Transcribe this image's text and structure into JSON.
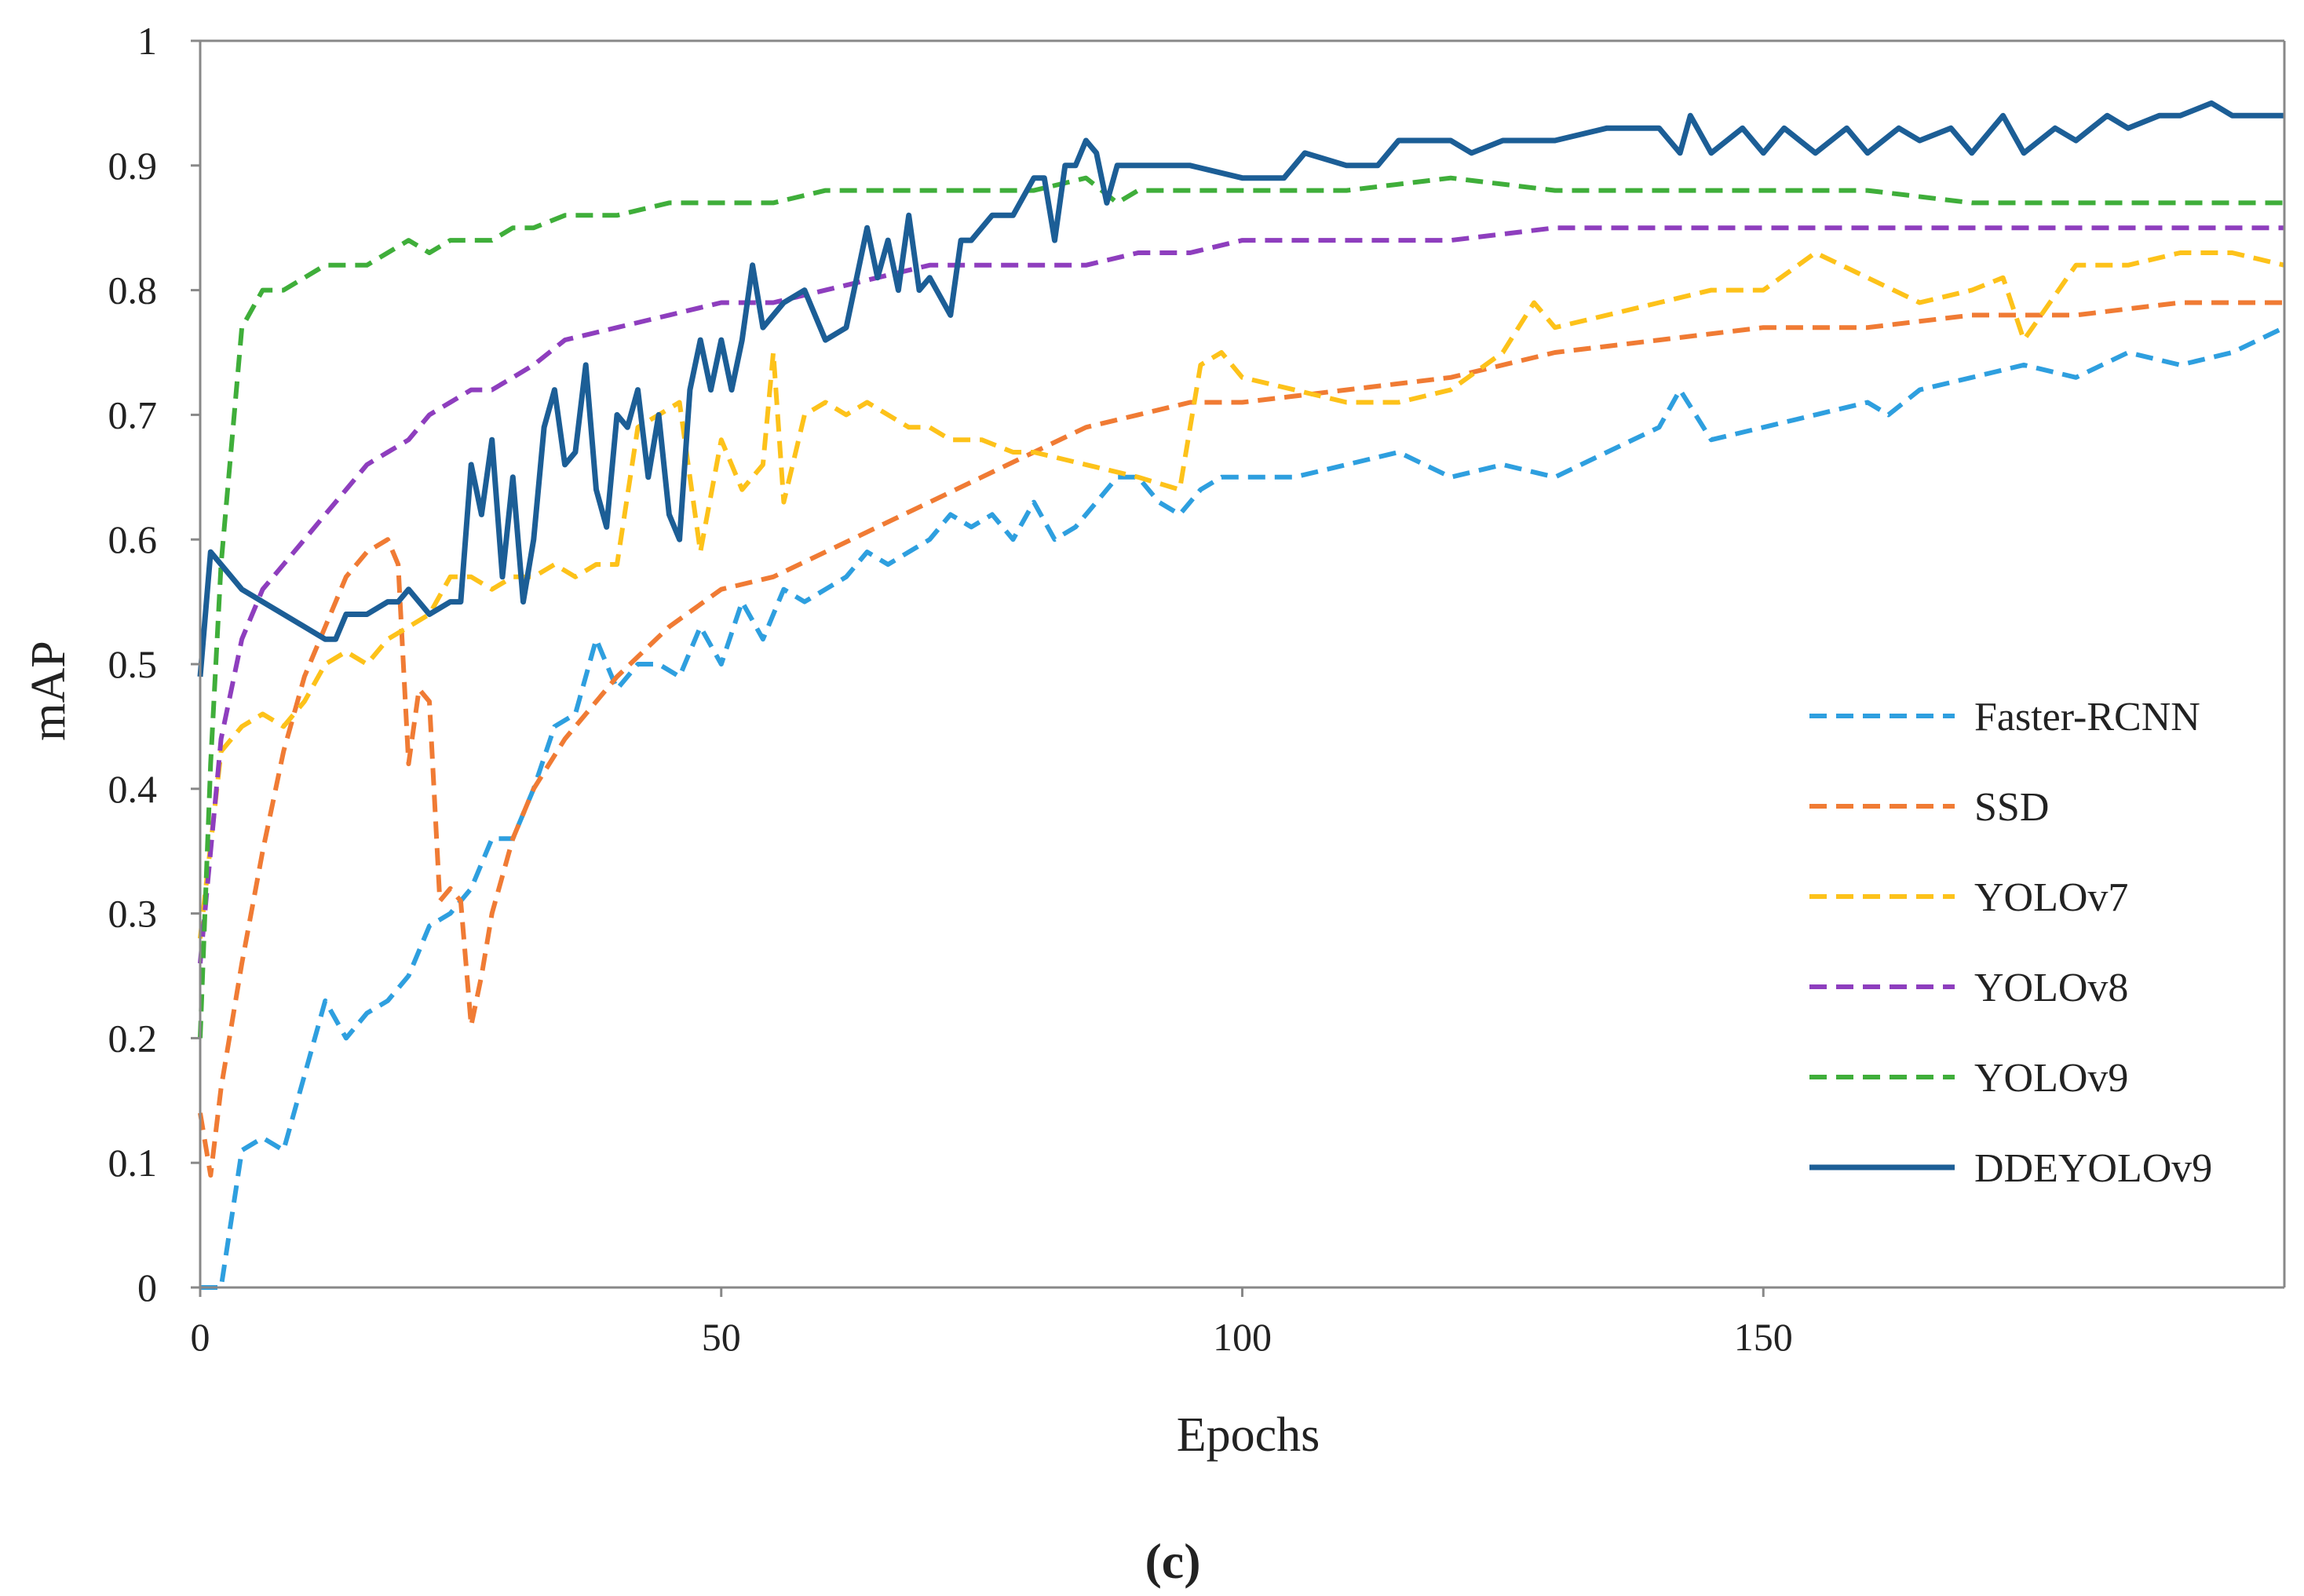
{
  "chart_data": {
    "type": "line",
    "title": "",
    "xlabel": "Epochs",
    "ylabel": "mAP",
    "caption": "(c)",
    "xlim": [
      0,
      200
    ],
    "ylim": [
      0,
      1
    ],
    "xticks": [
      {
        "value": 0,
        "label": "0"
      },
      {
        "value": 50,
        "label": "50"
      },
      {
        "value": 100,
        "label": "100"
      },
      {
        "value": 150,
        "label": "150"
      }
    ],
    "yticks": [
      {
        "value": 0,
        "label": "0"
      },
      {
        "value": 0.1,
        "label": "0.1"
      },
      {
        "value": 0.2,
        "label": "0.2"
      },
      {
        "value": 0.3,
        "label": "0.3"
      },
      {
        "value": 0.4,
        "label": "0.4"
      },
      {
        "value": 0.5,
        "label": "0.5"
      },
      {
        "value": 0.6,
        "label": "0.6"
      },
      {
        "value": 0.7,
        "label": "0.7"
      },
      {
        "value": 0.8,
        "label": "0.8"
      },
      {
        "value": 0.9,
        "label": "0.9"
      },
      {
        "value": 1,
        "label": "1"
      }
    ],
    "grid": false,
    "legend_position": "right",
    "series": [
      {
        "name": "Faster-RCNN",
        "color": "#2E9FDF",
        "dashed": true,
        "x": [
          0,
          2,
          4,
          6,
          8,
          10,
          12,
          14,
          16,
          18,
          20,
          22,
          24,
          26,
          28,
          30,
          32,
          34,
          36,
          38,
          40,
          42,
          44,
          46,
          48,
          50,
          52,
          54,
          56,
          58,
          60,
          62,
          64,
          66,
          68,
          70,
          72,
          74,
          76,
          78,
          80,
          82,
          84,
          86,
          88,
          90,
          92,
          94,
          96,
          98,
          100,
          105,
          110,
          115,
          120,
          125,
          130,
          135,
          140,
          142,
          145,
          150,
          155,
          160,
          162,
          165,
          170,
          175,
          180,
          185,
          190,
          195,
          200
        ],
        "y": [
          0,
          0,
          0.11,
          0.12,
          0.11,
          0.17,
          0.23,
          0.2,
          0.22,
          0.23,
          0.25,
          0.29,
          0.3,
          0.32,
          0.36,
          0.36,
          0.4,
          0.45,
          0.46,
          0.52,
          0.48,
          0.5,
          0.5,
          0.49,
          0.53,
          0.5,
          0.55,
          0.52,
          0.56,
          0.55,
          0.56,
          0.57,
          0.59,
          0.58,
          0.59,
          0.6,
          0.62,
          0.61,
          0.62,
          0.6,
          0.63,
          0.6,
          0.61,
          0.63,
          0.65,
          0.65,
          0.63,
          0.62,
          0.64,
          0.65,
          0.65,
          0.65,
          0.66,
          0.67,
          0.65,
          0.66,
          0.65,
          0.67,
          0.69,
          0.72,
          0.68,
          0.69,
          0.7,
          0.71,
          0.7,
          0.72,
          0.73,
          0.74,
          0.73,
          0.75,
          0.74,
          0.75,
          0.77
        ]
      },
      {
        "name": "SSD",
        "color": "#F07B34",
        "dashed": true,
        "x": [
          0,
          1,
          2,
          4,
          6,
          8,
          10,
          12,
          14,
          16,
          18,
          19,
          20,
          21,
          22,
          23,
          24,
          25,
          26,
          27,
          28,
          30,
          32,
          35,
          40,
          45,
          50,
          55,
          60,
          65,
          70,
          75,
          80,
          85,
          90,
          95,
          100,
          110,
          120,
          130,
          140,
          150,
          160,
          170,
          180,
          190,
          200
        ],
        "y": [
          0.14,
          0.09,
          0.16,
          0.26,
          0.35,
          0.43,
          0.49,
          0.53,
          0.57,
          0.59,
          0.6,
          0.58,
          0.42,
          0.48,
          0.47,
          0.31,
          0.32,
          0.31,
          0.21,
          0.25,
          0.3,
          0.36,
          0.4,
          0.44,
          0.49,
          0.53,
          0.56,
          0.57,
          0.59,
          0.61,
          0.63,
          0.65,
          0.67,
          0.69,
          0.7,
          0.71,
          0.71,
          0.72,
          0.73,
          0.75,
          0.76,
          0.77,
          0.77,
          0.78,
          0.78,
          0.79,
          0.79
        ]
      },
      {
        "name": "YOLOv7",
        "color": "#FDC21A",
        "dashed": true,
        "x": [
          0,
          2,
          4,
          6,
          8,
          10,
          12,
          14,
          16,
          18,
          20,
          22,
          24,
          26,
          28,
          30,
          32,
          34,
          36,
          38,
          40,
          42,
          44,
          46,
          48,
          50,
          52,
          54,
          55,
          56,
          58,
          60,
          62,
          64,
          66,
          68,
          70,
          72,
          75,
          78,
          80,
          85,
          90,
          94,
          95,
          96,
          98,
          100,
          105,
          110,
          115,
          120,
          125,
          128,
          130,
          135,
          140,
          145,
          150,
          155,
          160,
          165,
          170,
          173,
          175,
          180,
          185,
          190,
          195,
          200
        ],
        "y": [
          0.28,
          0.43,
          0.45,
          0.46,
          0.45,
          0.47,
          0.5,
          0.51,
          0.5,
          0.52,
          0.53,
          0.54,
          0.57,
          0.57,
          0.56,
          0.57,
          0.57,
          0.58,
          0.57,
          0.58,
          0.58,
          0.69,
          0.7,
          0.71,
          0.59,
          0.68,
          0.64,
          0.66,
          0.75,
          0.63,
          0.7,
          0.71,
          0.7,
          0.71,
          0.7,
          0.69,
          0.69,
          0.68,
          0.68,
          0.67,
          0.67,
          0.66,
          0.65,
          0.64,
          0.69,
          0.74,
          0.75,
          0.73,
          0.72,
          0.71,
          0.71,
          0.72,
          0.75,
          0.79,
          0.77,
          0.78,
          0.79,
          0.8,
          0.8,
          0.83,
          0.81,
          0.79,
          0.8,
          0.81,
          0.76,
          0.82,
          0.82,
          0.83,
          0.83,
          0.82
        ]
      },
      {
        "name": "YOLOv8",
        "color": "#8E3EBE",
        "dashed": true,
        "x": [
          0,
          2,
          4,
          6,
          8,
          10,
          12,
          14,
          16,
          18,
          20,
          22,
          24,
          26,
          28,
          30,
          32,
          35,
          40,
          45,
          50,
          55,
          60,
          65,
          70,
          75,
          80,
          85,
          90,
          95,
          100,
          105,
          110,
          120,
          130,
          140,
          150,
          160,
          170,
          180,
          190,
          200
        ],
        "y": [
          0.26,
          0.44,
          0.52,
          0.56,
          0.58,
          0.6,
          0.62,
          0.64,
          0.66,
          0.67,
          0.68,
          0.7,
          0.71,
          0.72,
          0.72,
          0.73,
          0.74,
          0.76,
          0.77,
          0.78,
          0.79,
          0.79,
          0.8,
          0.81,
          0.82,
          0.82,
          0.82,
          0.82,
          0.83,
          0.83,
          0.84,
          0.84,
          0.84,
          0.84,
          0.85,
          0.85,
          0.85,
          0.85,
          0.85,
          0.85,
          0.85,
          0.85
        ]
      },
      {
        "name": "YOLOv9",
        "color": "#3FAE3A",
        "dashed": true,
        "x": [
          0,
          1,
          2,
          4,
          6,
          8,
          10,
          12,
          14,
          16,
          18,
          20,
          22,
          24,
          26,
          28,
          30,
          32,
          35,
          40,
          45,
          50,
          55,
          60,
          65,
          70,
          75,
          80,
          85,
          88,
          90,
          95,
          100,
          110,
          120,
          130,
          140,
          150,
          160,
          170,
          175,
          180,
          190,
          200
        ],
        "y": [
          0.2,
          0.42,
          0.58,
          0.77,
          0.8,
          0.8,
          0.81,
          0.82,
          0.82,
          0.82,
          0.83,
          0.84,
          0.83,
          0.84,
          0.84,
          0.84,
          0.85,
          0.85,
          0.86,
          0.86,
          0.87,
          0.87,
          0.87,
          0.88,
          0.88,
          0.88,
          0.88,
          0.88,
          0.89,
          0.87,
          0.88,
          0.88,
          0.88,
          0.88,
          0.89,
          0.88,
          0.88,
          0.88,
          0.88,
          0.87,
          0.87,
          0.87,
          0.87,
          0.87
        ]
      },
      {
        "name": "DDEYOLOv9",
        "color": "#1C5E96",
        "dashed": false,
        "x": [
          0,
          1,
          2,
          4,
          6,
          8,
          10,
          12,
          13,
          14,
          16,
          18,
          19,
          20,
          22,
          24,
          25,
          26,
          27,
          28,
          29,
          30,
          31,
          32,
          33,
          34,
          35,
          36,
          37,
          38,
          39,
          40,
          41,
          42,
          43,
          44,
          45,
          46,
          47,
          48,
          49,
          50,
          51,
          52,
          53,
          54,
          56,
          58,
          60,
          62,
          64,
          65,
          66,
          67,
          68,
          69,
          70,
          72,
          73,
          74,
          76,
          78,
          80,
          81,
          82,
          83,
          84,
          85,
          86,
          87,
          88,
          90,
          95,
          100,
          104,
          106,
          110,
          113,
          115,
          118,
          120,
          122,
          125,
          130,
          135,
          140,
          142,
          143,
          145,
          148,
          150,
          152,
          155,
          158,
          160,
          163,
          165,
          168,
          170,
          173,
          175,
          178,
          180,
          183,
          185,
          188,
          190,
          193,
          195,
          198,
          200
        ],
        "y": [
          0.49,
          0.59,
          0.58,
          0.56,
          0.55,
          0.54,
          0.53,
          0.52,
          0.52,
          0.54,
          0.54,
          0.55,
          0.55,
          0.56,
          0.54,
          0.55,
          0.55,
          0.66,
          0.62,
          0.68,
          0.57,
          0.65,
          0.55,
          0.6,
          0.69,
          0.72,
          0.66,
          0.67,
          0.74,
          0.64,
          0.61,
          0.7,
          0.69,
          0.72,
          0.65,
          0.7,
          0.62,
          0.6,
          0.72,
          0.76,
          0.72,
          0.76,
          0.72,
          0.76,
          0.82,
          0.77,
          0.79,
          0.8,
          0.76,
          0.77,
          0.85,
          0.81,
          0.84,
          0.8,
          0.86,
          0.8,
          0.81,
          0.78,
          0.84,
          0.84,
          0.86,
          0.86,
          0.89,
          0.89,
          0.84,
          0.9,
          0.9,
          0.92,
          0.91,
          0.87,
          0.9,
          0.9,
          0.9,
          0.89,
          0.89,
          0.91,
          0.9,
          0.9,
          0.92,
          0.92,
          0.92,
          0.91,
          0.92,
          0.92,
          0.93,
          0.93,
          0.91,
          0.94,
          0.91,
          0.93,
          0.91,
          0.93,
          0.91,
          0.93,
          0.91,
          0.93,
          0.92,
          0.93,
          0.91,
          0.94,
          0.91,
          0.93,
          0.92,
          0.94,
          0.93,
          0.94,
          0.94,
          0.95,
          0.94,
          0.94,
          0.94
        ]
      }
    ]
  }
}
